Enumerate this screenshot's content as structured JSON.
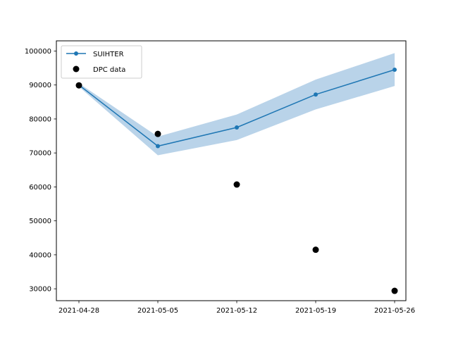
{
  "chart_data": {
    "type": "line",
    "title": "",
    "xlabel": "",
    "ylabel": "",
    "x": [
      "2021-04-28",
      "2021-05-05",
      "2021-05-12",
      "2021-05-19",
      "2021-05-26"
    ],
    "xlim": [
      "2021-04-26",
      "2021-05-27"
    ],
    "ylim": [
      26500,
      103000
    ],
    "yticks": [
      30000,
      40000,
      50000,
      60000,
      70000,
      80000,
      90000,
      100000
    ],
    "grid": false,
    "legend_position": "top-left",
    "series": [
      {
        "name": "SUIHTER",
        "kind": "line",
        "color": "#1f77b4",
        "values": [
          90000,
          72000,
          77500,
          87200,
          94500
        ],
        "band_lower": [
          89500,
          69300,
          73800,
          82800,
          89700
        ],
        "band_upper": [
          90500,
          74800,
          81300,
          91600,
          99400
        ],
        "band_color": "#b9d3e9"
      },
      {
        "name": "DPC data",
        "kind": "scatter",
        "color": "#000000",
        "values": [
          89900,
          75600,
          60700,
          41500,
          29400
        ]
      }
    ]
  }
}
